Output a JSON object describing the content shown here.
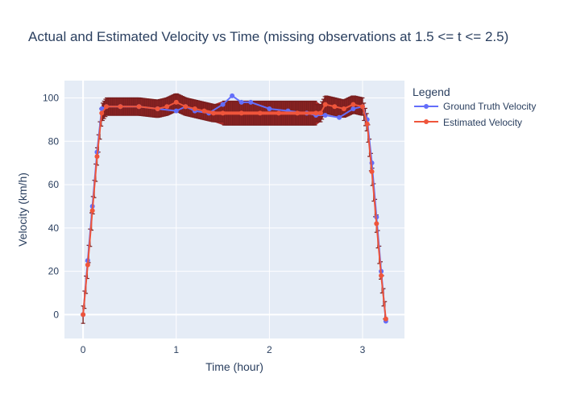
{
  "chart_data": {
    "type": "line",
    "title": "Actual and Estimated Velocity vs Time (missing observations at 1.5 <= t <= 2.5)",
    "xlabel": "Time (hour)",
    "ylabel": "Velocity (km/h)",
    "xlim": [
      -0.2,
      3.45
    ],
    "ylim": [
      -11,
      108
    ],
    "x_ticks": [
      0,
      1,
      2,
      3
    ],
    "y_ticks": [
      0,
      20,
      40,
      60,
      80,
      100
    ],
    "grid": true,
    "legend": {
      "title": "Legend",
      "placement": "right"
    },
    "colors": {
      "plot_background": "#e5ecf6",
      "ground_truth": "#636efa",
      "estimated": "#ef553b",
      "error_band": "#a52a2a"
    },
    "error_bar_half_width_kmh": {
      "observed": 4,
      "missing_region": 5.5
    },
    "series": [
      {
        "name": "Ground Truth Velocity",
        "x": [
          0,
          0.05,
          0.1,
          0.15,
          0.2,
          0.25,
          0.4,
          0.6,
          0.8,
          1.0,
          1.1,
          1.2,
          1.35,
          1.5,
          1.6,
          1.7,
          1.8,
          2.0,
          2.2,
          2.4,
          2.5,
          2.6,
          2.75,
          2.9,
          3.0,
          3.05,
          3.1,
          3.15,
          3.2,
          3.25
        ],
        "values": [
          0,
          25,
          50,
          75,
          95,
          96,
          96,
          96,
          95,
          94,
          96,
          94,
          93,
          97,
          101,
          98,
          98,
          95,
          94,
          93,
          92,
          92,
          91,
          95,
          96,
          90,
          70,
          45,
          20,
          -3
        ]
      },
      {
        "name": "Estimated Velocity",
        "x": [
          0,
          0.05,
          0.1,
          0.15,
          0.2,
          0.25,
          0.4,
          0.6,
          0.8,
          0.9,
          1.0,
          1.1,
          1.2,
          1.3,
          1.4,
          1.5,
          1.7,
          1.9,
          2.1,
          2.3,
          2.5,
          2.55,
          2.6,
          2.7,
          2.8,
          2.9,
          3.0,
          3.05,
          3.1,
          3.15,
          3.2,
          3.25
        ],
        "values": [
          0,
          23,
          48,
          73,
          93,
          96,
          96,
          96,
          95,
          96,
          98,
          96,
          95,
          94,
          93,
          93,
          93,
          93,
          93,
          93,
          93,
          93,
          97,
          96,
          95,
          97,
          96,
          88,
          66,
          42,
          18,
          -2
        ]
      }
    ]
  }
}
